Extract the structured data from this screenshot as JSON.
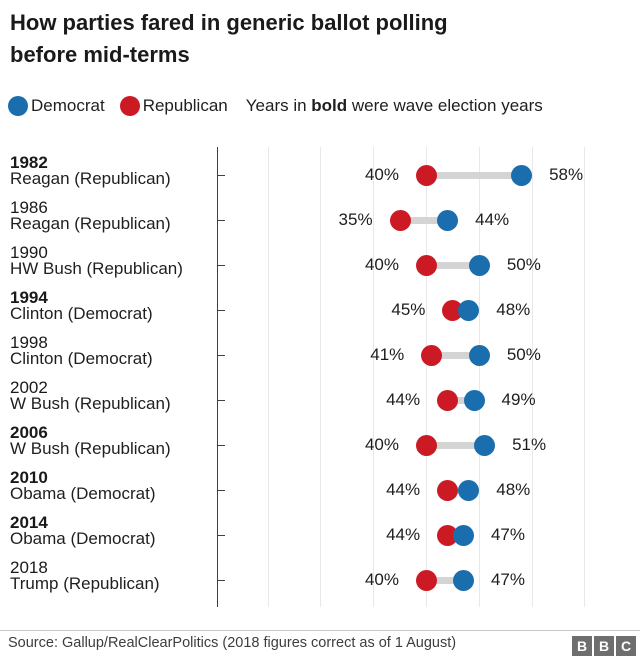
{
  "title_lines": [
    "How parties fared in generic ballot polling",
    "before mid-terms"
  ],
  "legend": {
    "democrat": "Democrat",
    "republican": "Republican",
    "note_prefix": "Years in ",
    "note_bold": "bold",
    "note_suffix": " were wave election years"
  },
  "chart_data": {
    "type": "dumbbell",
    "unit": "%",
    "xlim": [
      10,
      70
    ],
    "gridline_values": [
      10,
      20,
      30,
      40,
      50,
      60,
      70
    ],
    "grid": "vertical",
    "legend_position": "top",
    "series_names": [
      "Democrat",
      "Republican"
    ],
    "rows": [
      {
        "year": "1982",
        "president": "Reagan (Republican)",
        "wave": true,
        "republican": 40,
        "democrat": 58
      },
      {
        "year": "1986",
        "president": "Reagan (Republican)",
        "wave": false,
        "republican": 35,
        "democrat": 44
      },
      {
        "year": "1990",
        "president": "HW Bush (Republican)",
        "wave": false,
        "republican": 40,
        "democrat": 50
      },
      {
        "year": "1994",
        "president": "Clinton (Democrat)",
        "wave": true,
        "republican": 45,
        "democrat": 48
      },
      {
        "year": "1998",
        "president": "Clinton (Democrat)",
        "wave": false,
        "republican": 41,
        "democrat": 50
      },
      {
        "year": "2002",
        "president": "W Bush (Republican)",
        "wave": false,
        "republican": 44,
        "democrat": 49
      },
      {
        "year": "2006",
        "president": "W Bush (Republican)",
        "wave": true,
        "republican": 40,
        "democrat": 51
      },
      {
        "year": "2010",
        "president": "Obama (Democrat)",
        "wave": true,
        "republican": 44,
        "democrat": 48
      },
      {
        "year": "2014",
        "president": "Obama (Democrat)",
        "wave": true,
        "republican": 44,
        "democrat": 47
      },
      {
        "year": "2018",
        "president": "Trump (Republican)",
        "wave": false,
        "republican": 40,
        "democrat": 47
      }
    ]
  },
  "colors": {
    "democrat": "#1b6ead",
    "republican": "#cc1a24",
    "connector": "#d4d4d4",
    "gridline": "#e8e8e8",
    "axis": "#3f3f3f",
    "bbc_block": "#6e6e6e"
  },
  "footer": {
    "source": "Source: Gallup/RealClearPolitics (2018 figures correct as of 1 August)",
    "bbc_letters": [
      "B",
      "B",
      "C"
    ]
  }
}
